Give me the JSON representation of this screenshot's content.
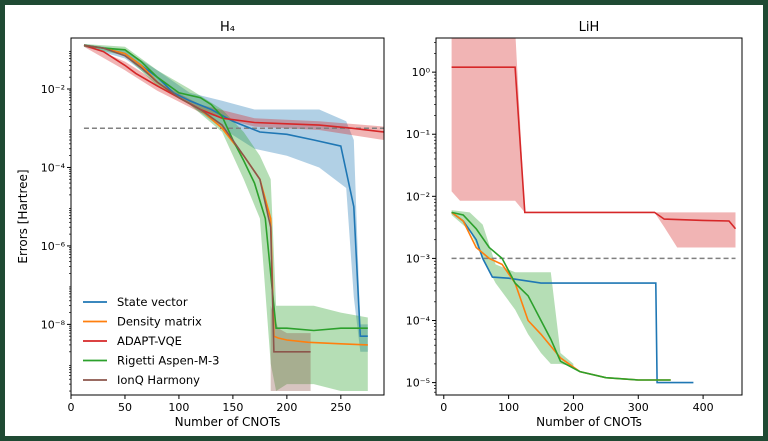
{
  "colors": {
    "state_vector": "#1f77b4",
    "density_matrix": "#ff7f0e",
    "adapt_vqe": "#d62728",
    "rigetti": "#2ca02c",
    "ionq": "#8c564b",
    "threshold": "#808080",
    "frame": "#1f4a33"
  },
  "chart_data": [
    {
      "type": "line",
      "title": "H₄",
      "xlabel": "Number of CNOTs",
      "ylabel": "Errors [Hartree]",
      "xlim": [
        0,
        290
      ],
      "ylim_log10": [
        -9.8,
        -0.7
      ],
      "yscale": "log",
      "xticks": [
        0,
        50,
        100,
        150,
        200,
        250
      ],
      "yticks": [
        {
          "exp": -2,
          "label": "10⁻²"
        },
        {
          "exp": -4,
          "label": "10⁻⁴"
        },
        {
          "exp": -6,
          "label": "10⁻⁶"
        },
        {
          "exp": -8,
          "label": "10⁻⁸"
        }
      ],
      "threshold": {
        "value": 0.001,
        "x": [
          12,
          290
        ]
      },
      "legend": {
        "placement": "lower-left",
        "entries": [
          {
            "key": "state_vector",
            "label": "State vector"
          },
          {
            "key": "density_matrix",
            "label": "Density matrix"
          },
          {
            "key": "adapt_vqe",
            "label": "ADAPT-VQE"
          },
          {
            "key": "rigetti",
            "label": "Rigetti Aspen-M-3"
          },
          {
            "key": "ionq",
            "label": "IonQ Harmony"
          }
        ]
      },
      "series": [
        {
          "key": "state_vector",
          "x": [
            12,
            30,
            50,
            65,
            80,
            95,
            110,
            130,
            150,
            175,
            200,
            225,
            250,
            262,
            268,
            275
          ],
          "y": [
            0.13,
            0.11,
            0.08,
            0.04,
            0.02,
            0.008,
            0.005,
            0.003,
            0.0015,
            0.0008,
            0.0007,
            0.0005,
            0.00035,
            1e-05,
            5e-09,
            5e-09
          ],
          "band_x": [
            12,
            50,
            80,
            110,
            140,
            170,
            200,
            230,
            255,
            262,
            268,
            275
          ],
          "band_lo": [
            0.12,
            0.06,
            0.015,
            0.004,
            0.001,
            0.0003,
            0.0002,
            0.0001,
            3e-05,
            5e-08,
            2e-09,
            2e-09
          ],
          "band_hi": [
            0.14,
            0.1,
            0.03,
            0.008,
            0.005,
            0.003,
            0.003,
            0.003,
            0.0015,
            0.0005,
            1e-08,
            1e-08
          ]
        },
        {
          "key": "density_matrix",
          "x": [
            12,
            30,
            50,
            65,
            80,
            100,
            120,
            140,
            160,
            175,
            185,
            188,
            192,
            200,
            220,
            250,
            275
          ],
          "y": [
            0.13,
            0.11,
            0.08,
            0.04,
            0.015,
            0.006,
            0.003,
            0.001,
            0.0002,
            5e-05,
            5e-06,
            5e-09,
            4.5e-09,
            4e-09,
            3.5e-09,
            3.2e-09,
            3e-09
          ]
        },
        {
          "key": "adapt_vqe",
          "x": [
            12,
            30,
            50,
            60,
            80,
            100,
            120,
            140,
            170,
            200,
            230,
            260,
            290
          ],
          "y": [
            0.13,
            0.09,
            0.04,
            0.025,
            0.012,
            0.006,
            0.003,
            0.0018,
            0.0014,
            0.0013,
            0.0012,
            0.001,
            0.0008
          ],
          "band_x": [
            12,
            50,
            80,
            120,
            170,
            230,
            290
          ],
          "band_lo": [
            0.12,
            0.03,
            0.009,
            0.0025,
            0.0011,
            0.0009,
            0.0005
          ],
          "band_hi": [
            0.14,
            0.05,
            0.015,
            0.004,
            0.0018,
            0.0015,
            0.0011
          ]
        },
        {
          "key": "rigetti",
          "x": [
            12,
            30,
            50,
            65,
            80,
            100,
            120,
            130,
            140,
            150,
            160,
            170,
            180,
            186,
            190,
            195,
            200,
            225,
            250,
            275
          ],
          "y": [
            0.13,
            0.11,
            0.1,
            0.05,
            0.02,
            0.008,
            0.006,
            0.004,
            0.002,
            0.0005,
            0.00015,
            4e-05,
            5e-06,
            1e-07,
            8e-09,
            8e-09,
            8e-09,
            7e-09,
            8e-09,
            8e-09
          ],
          "band_x": [
            12,
            50,
            80,
            110,
            140,
            160,
            175,
            185,
            190,
            200,
            225,
            250,
            275
          ],
          "band_lo": [
            0.12,
            0.07,
            0.012,
            0.004,
            0.0008,
            5e-05,
            5e-06,
            1e-09,
            2e-10,
            3e-10,
            3e-10,
            2e-10,
            2e-10
          ],
          "band_hi": [
            0.14,
            0.12,
            0.03,
            0.01,
            0.003,
            0.0008,
            0.0002,
            5e-05,
            3e-08,
            3e-08,
            3e-08,
            2e-08,
            1.5e-08
          ]
        },
        {
          "key": "ionq",
          "x": [
            12,
            30,
            50,
            65,
            80,
            100,
            120,
            140,
            160,
            175,
            185,
            188,
            192,
            200,
            222
          ],
          "y": [
            0.13,
            0.11,
            0.07,
            0.035,
            0.015,
            0.006,
            0.003,
            0.0012,
            0.0002,
            5e-05,
            3e-06,
            2e-09,
            2e-09,
            2e-09,
            2e-09
          ],
          "band_x": [
            185,
            192,
            200,
            222
          ],
          "band_lo": [
            2e-10,
            2e-10,
            2e-10,
            2e-10
          ],
          "band_hi": [
            3e-08,
            8e-09,
            6e-09,
            6e-09
          ]
        }
      ]
    },
    {
      "type": "line",
      "title": "LiH",
      "xlabel": "Number of CNOTs",
      "ylabel": "",
      "xlim": [
        -12,
        460
      ],
      "ylim_log10": [
        -5.2,
        0.55
      ],
      "yscale": "log",
      "xticks": [
        0,
        100,
        200,
        300,
        400
      ],
      "yticks": [
        {
          "exp": 0,
          "label": "10⁰"
        },
        {
          "exp": -1,
          "label": "10⁻¹"
        },
        {
          "exp": -2,
          "label": "10⁻²"
        },
        {
          "exp": -3,
          "label": "10⁻³"
        },
        {
          "exp": -4,
          "label": "10⁻⁴"
        },
        {
          "exp": -5,
          "label": "10⁻⁵"
        }
      ],
      "threshold": {
        "value": 0.001,
        "x": [
          12,
          450
        ]
      },
      "series": [
        {
          "key": "adapt_vqe",
          "x": [
            12,
            110,
            125,
            200,
            300,
            325,
            340,
            400,
            440,
            450
          ],
          "y": [
            1.2,
            1.2,
            0.0055,
            0.0055,
            0.0055,
            0.0055,
            0.0043,
            0.0041,
            0.004,
            0.003
          ],
          "band_x": [
            12,
            25,
            110,
            125,
            200,
            325,
            340,
            360,
            450
          ],
          "band_lo": [
            0.012,
            0.0085,
            0.0085,
            0.0055,
            0.0055,
            0.0055,
            0.0032,
            0.0015,
            0.0015
          ],
          "band_hi": [
            5,
            5,
            5,
            0.0055,
            0.0055,
            0.0055,
            0.0055,
            0.0055,
            0.0055
          ]
        },
        {
          "key": "state_vector",
          "x": [
            12,
            30,
            50,
            60,
            75,
            100,
            150,
            200,
            250,
            300,
            327,
            329,
            350,
            385
          ],
          "y": [
            0.0055,
            0.004,
            0.002,
            0.001,
            0.0005,
            0.00048,
            0.0004,
            0.0004,
            0.0004,
            0.0004,
            0.0004,
            1e-05,
            1e-05,
            1e-05
          ]
        },
        {
          "key": "density_matrix",
          "x": [
            12,
            30,
            50,
            70,
            90,
            110,
            130,
            150,
            180,
            210,
            250,
            300,
            350
          ],
          "y": [
            0.0055,
            0.004,
            0.0015,
            0.001,
            0.0008,
            0.0004,
            0.0001,
            6e-05,
            2.5e-05,
            1.5e-05,
            1.2e-05,
            1.1e-05,
            1.1e-05
          ]
        },
        {
          "key": "rigetti",
          "x": [
            12,
            30,
            50,
            70,
            90,
            110,
            130,
            150,
            165,
            180,
            210,
            250,
            300,
            350
          ],
          "y": [
            0.0055,
            0.005,
            0.003,
            0.0015,
            0.001,
            0.0004,
            0.00025,
            0.0001,
            5e-05,
            2.2e-05,
            1.5e-05,
            1.2e-05,
            1.1e-05,
            1.1e-05
          ],
          "band_x": [
            12,
            40,
            60,
            80,
            110,
            130,
            150,
            165,
            180,
            200
          ],
          "band_lo": [
            0.005,
            0.0028,
            0.001,
            0.0004,
            0.00015,
            6e-05,
            3e-05,
            2e-05,
            2e-05,
            1.8e-05
          ],
          "band_hi": [
            0.006,
            0.0055,
            0.0035,
            0.0008,
            0.0006,
            0.0006,
            0.0006,
            0.0006,
            3e-05,
            2e-05
          ]
        }
      ]
    }
  ]
}
